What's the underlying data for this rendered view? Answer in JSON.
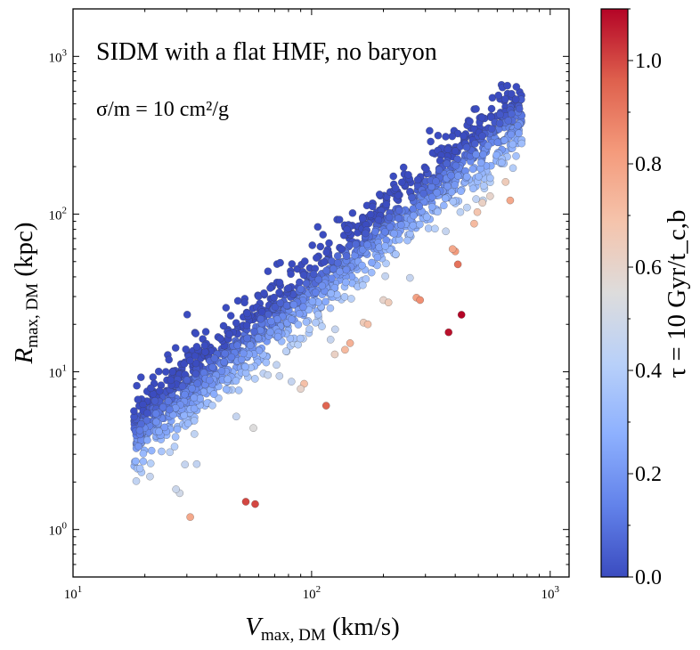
{
  "chart_data": {
    "type": "scatter",
    "title": "SIDM with a flat HMF, no baryon",
    "annotation": "σ/m = 10 cm²/g",
    "xlabel": "V_max, DM (km/s)",
    "xlabel_main": "V",
    "xlabel_sub": "max, DM",
    "xlabel_unit": " (km/s)",
    "ylabel": "R_max, DM (kpc)",
    "ylabel_main": "R",
    "ylabel_sub": "max, DM",
    "ylabel_unit": " (kpc)",
    "xscale": "log",
    "yscale": "log",
    "xlim": [
      10,
      1200
    ],
    "ylim": [
      0.5,
      2000
    ],
    "x_ticks": [
      {
        "value": 10,
        "base": "10",
        "exp": "1"
      },
      {
        "value": 100,
        "base": "10",
        "exp": "2"
      },
      {
        "value": 1000,
        "base": "10",
        "exp": "3"
      }
    ],
    "y_ticks": [
      {
        "value": 1,
        "base": "10",
        "exp": "0"
      },
      {
        "value": 10,
        "base": "10",
        "exp": "1"
      },
      {
        "value": 100,
        "base": "10",
        "exp": "2"
      },
      {
        "value": 1000,
        "base": "10",
        "exp": "3"
      }
    ],
    "colorbar": {
      "label": "τ = 10 Gyr/t_c,b",
      "cmap": "coolwarm",
      "range": [
        0.0,
        1.1
      ],
      "ticks": [
        "0.0",
        "0.2",
        "0.4",
        "0.6",
        "0.8",
        "1.0"
      ],
      "colors": [
        "#3b4cc0",
        "#6282ea",
        "#8db0fe",
        "#b8d0f9",
        "#dddcdc",
        "#f5c4ac",
        "#f49a7b",
        "#de604d",
        "#b40426"
      ]
    },
    "grid": false,
    "main_trend": {
      "description": "~1500 halos; log R_max ≈ 1.25·log V_max − 0.97 with intrinsic scatter; tau mostly 0.0–0.45, higher tau below the relation",
      "x_range": [
        18,
        760
      ],
      "slope": 1.25,
      "intercept": -0.97,
      "n_points": 1500
    },
    "outliers": [
      {
        "x": 31,
        "y": 1.2,
        "tau": 0.78
      },
      {
        "x": 53,
        "y": 1.5,
        "tau": 1.0
      },
      {
        "x": 58,
        "y": 1.45,
        "tau": 1.0
      },
      {
        "x": 57,
        "y": 4.4,
        "tau": 0.55
      },
      {
        "x": 115,
        "y": 6.1,
        "tau": 0.95
      },
      {
        "x": 93,
        "y": 8.4,
        "tau": 0.7
      },
      {
        "x": 90,
        "y": 7.8,
        "tau": 0.6
      },
      {
        "x": 125,
        "y": 12.9,
        "tau": 0.62
      },
      {
        "x": 138,
        "y": 13.8,
        "tau": 0.72
      },
      {
        "x": 145,
        "y": 15.2,
        "tau": 0.75
      },
      {
        "x": 165,
        "y": 20.5,
        "tau": 0.65
      },
      {
        "x": 172,
        "y": 20.0,
        "tau": 0.7
      },
      {
        "x": 200,
        "y": 28.5,
        "tau": 0.6
      },
      {
        "x": 210,
        "y": 27.5,
        "tau": 0.65
      },
      {
        "x": 275,
        "y": 29.5,
        "tau": 0.8
      },
      {
        "x": 285,
        "y": 28.5,
        "tau": 0.85
      },
      {
        "x": 375,
        "y": 17.8,
        "tau": 1.08
      },
      {
        "x": 425,
        "y": 23.0,
        "tau": 1.1
      },
      {
        "x": 410,
        "y": 48.0,
        "tau": 0.92
      },
      {
        "x": 400,
        "y": 58.0,
        "tau": 0.82
      },
      {
        "x": 390,
        "y": 60.0,
        "tau": 0.78
      },
      {
        "x": 480,
        "y": 87.0,
        "tau": 0.72
      },
      {
        "x": 495,
        "y": 103.0,
        "tau": 0.68
      },
      {
        "x": 520,
        "y": 118.0,
        "tau": 0.62
      },
      {
        "x": 560,
        "y": 130.0,
        "tau": 0.6
      },
      {
        "x": 650,
        "y": 160.0,
        "tau": 0.65
      },
      {
        "x": 680,
        "y": 122.0,
        "tau": 0.78
      },
      {
        "x": 33,
        "y": 2.6,
        "tau": 0.45
      },
      {
        "x": 28,
        "y": 1.7,
        "tau": 0.5
      },
      {
        "x": 27,
        "y": 1.8,
        "tau": 0.48
      }
    ]
  }
}
